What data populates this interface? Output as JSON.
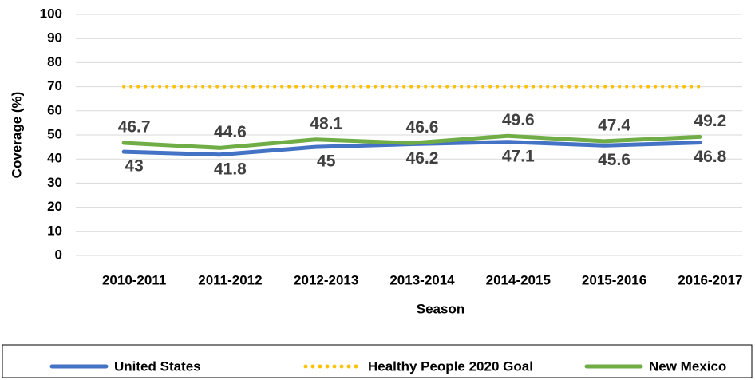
{
  "chart_data": {
    "type": "line",
    "x_label": "Season",
    "y_label": "Coverage (%)",
    "categories": [
      "2010-2011",
      "2011-2012",
      "2012-2013",
      "2013-2014",
      "2014-2015",
      "2015-2016",
      "2016-2017"
    ],
    "series": [
      {
        "name": "United States",
        "color": "#4472c4",
        "style": "solid",
        "labels": "below",
        "values": [
          43,
          41.8,
          45,
          46.2,
          47.1,
          45.6,
          46.8
        ]
      },
      {
        "name": "Healthy People 2020 Goal",
        "color": "#ffc000",
        "style": "dotted",
        "labels": "none",
        "values": [
          70,
          70,
          70,
          70,
          70,
          70,
          70
        ]
      },
      {
        "name": "New Mexico",
        "color": "#70ad47",
        "style": "solid",
        "labels": "above",
        "values": [
          46.7,
          44.6,
          48.1,
          46.6,
          49.6,
          47.4,
          49.2
        ]
      }
    ],
    "ylim": [
      0,
      100
    ],
    "yticks": [
      0,
      10,
      20,
      30,
      40,
      50,
      60,
      70,
      80,
      90,
      100
    ],
    "grid": true,
    "legend": "bottom"
  }
}
